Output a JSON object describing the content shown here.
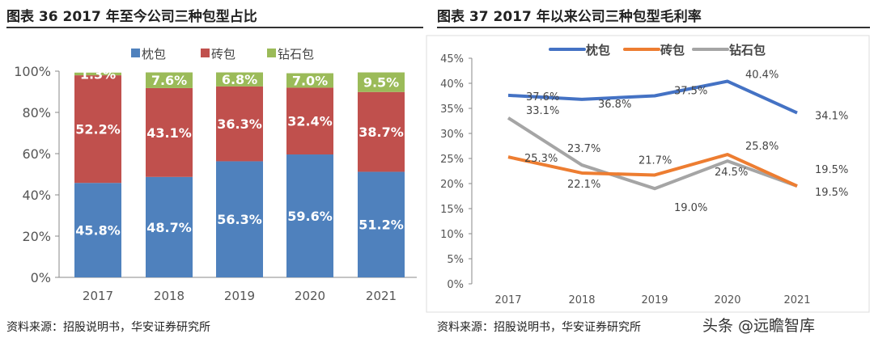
{
  "footer_source": "资料来源：招股说明书，华安证券研究所",
  "watermark": "头条 @远瞻智库",
  "colors": {
    "pillow": "#4f81bd",
    "brick": "#c0504d",
    "diamond": "#9bbb59",
    "line_pillow": "#4472c4",
    "line_brick": "#ed7d31",
    "line_diamond": "#a5a5a5"
  },
  "chart_data": [
    {
      "type": "bar",
      "stacked": true,
      "title": "图表 36 2017 年至今公司三种包型占比",
      "categories": [
        "2017",
        "2018",
        "2019",
        "2020",
        "2021"
      ],
      "ylim": [
        0,
        100
      ],
      "yticks": [
        "0%",
        "20%",
        "40%",
        "60%",
        "80%",
        "100%"
      ],
      "legend": "top",
      "series": [
        {
          "name": "枕包",
          "values": [
            45.8,
            48.7,
            56.3,
            59.6,
            51.2
          ],
          "labels": [
            "45.8%",
            "48.7%",
            "56.3%",
            "59.6%",
            "51.2%"
          ]
        },
        {
          "name": "砖包",
          "values": [
            52.2,
            43.1,
            36.3,
            32.4,
            38.7
          ],
          "labels": [
            "52.2%",
            "43.1%",
            "36.3%",
            "32.4%",
            "38.7%"
          ]
        },
        {
          "name": "钻石包",
          "values": [
            1.3,
            7.6,
            6.8,
            7.0,
            9.5
          ],
          "labels": [
            "1.3%",
            "7.6%",
            "6.8%",
            "7.0%",
            "9.5%"
          ]
        }
      ]
    },
    {
      "type": "line",
      "title": "图表 37 2017 年以来公司三种包型毛利率",
      "categories": [
        "2017",
        "2018",
        "2019",
        "2020",
        "2021"
      ],
      "ylim": [
        0,
        45
      ],
      "yticks": [
        "0%",
        "5%",
        "10%",
        "15%",
        "20%",
        "25%",
        "30%",
        "35%",
        "40%",
        "45%"
      ],
      "legend": "top",
      "series": [
        {
          "name": "枕包",
          "values": [
            37.6,
            36.8,
            37.5,
            40.4,
            34.1
          ],
          "labels": [
            "37.6%",
            "36.8%",
            "37.5%",
            "40.4%",
            "34.1%"
          ]
        },
        {
          "name": "砖包",
          "values": [
            25.3,
            22.1,
            21.7,
            25.8,
            19.5
          ],
          "labels": [
            "25.3%",
            "22.1%",
            "21.7%",
            "25.8%",
            "19.5%"
          ]
        },
        {
          "name": "钻石包",
          "values": [
            33.1,
            23.7,
            19.0,
            24.5,
            19.5
          ],
          "labels": [
            "33.1%",
            "23.7%",
            "19.0%",
            "24.5%",
            "19.5%"
          ]
        }
      ]
    }
  ]
}
